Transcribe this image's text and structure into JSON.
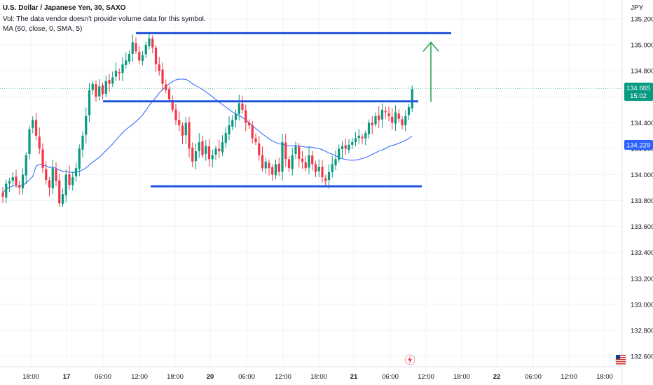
{
  "header": {
    "title": "U.S. Dollar / Japanese Yen, 30, SAXO",
    "vol_note": "Vol: The data vendor doesn't provide volume data for this symbol.",
    "ma_label": "MA (60, close, 0, SMA, 5)"
  },
  "currency": "JPY",
  "colors": {
    "up": "#089981",
    "down": "#f23645",
    "ma": "#2962ff",
    "drawn_lines": "#2255dd",
    "arrow": "#22a045",
    "last_price_bg": "#089981",
    "ma_label_bg": "#2962ff"
  },
  "badges": {
    "last_price": "134.665",
    "countdown": "15:02",
    "ma_value": "134.229"
  },
  "chart_data": {
    "type": "candlestick",
    "title": "U.S. Dollar / Japanese Yen, 30, SAXO",
    "y_axis": {
      "position": "right",
      "unit": "JPY",
      "ylim": [
        132.55,
        135.25
      ],
      "ticks": [
        "135.200",
        "135.000",
        "134.800",
        "134.600",
        "134.400",
        "134.200",
        "134.000",
        "133.800",
        "133.600",
        "133.400",
        "133.200",
        "133.000",
        "132.800",
        "132.600"
      ]
    },
    "x_axis": {
      "ticks": [
        "18:00",
        "17",
        "06:00",
        "12:00",
        "18:00",
        "20",
        "06:00",
        "12:00",
        "18:00",
        "21",
        "06:00",
        "12:00",
        "18:00",
        "22",
        "06:00",
        "12:00",
        "18:00"
      ]
    },
    "closes": [
      133.83,
      133.93,
      133.95,
      133.98,
      133.92,
      133.9,
      134.0,
      134.15,
      134.35,
      134.42,
      134.3,
      134.2,
      134.05,
      133.96,
      133.9,
      134.05,
      133.95,
      133.78,
      133.85,
      134.0,
      133.92,
      133.98,
      134.05,
      134.2,
      134.3,
      134.45,
      134.65,
      134.7,
      134.6,
      134.68,
      134.62,
      134.72,
      134.7,
      134.75,
      134.8,
      134.78,
      134.85,
      134.88,
      134.93,
      135.02,
      134.95,
      134.88,
      134.92,
      135.0,
      135.05,
      134.98,
      134.85,
      134.8,
      134.7,
      134.65,
      134.58,
      134.5,
      134.42,
      134.38,
      134.3,
      134.4,
      134.2,
      134.1,
      134.18,
      134.25,
      134.15,
      134.22,
      134.12,
      134.15,
      134.2,
      134.18,
      134.25,
      134.32,
      134.38,
      134.42,
      134.47,
      134.55,
      134.5,
      134.4,
      134.38,
      134.28,
      134.25,
      134.15,
      134.05,
      134.1,
      134.05,
      134.0,
      134.08,
      134.02,
      134.25,
      134.12,
      134.05,
      134.15,
      134.22,
      134.12,
      134.1,
      134.05,
      134.15,
      134.08,
      134.02,
      134.06,
      133.98,
      133.95,
      134.02,
      134.08,
      134.12,
      134.2,
      134.22,
      134.2,
      134.23,
      134.25,
      134.28,
      134.3,
      134.28,
      134.32,
      134.4,
      134.38,
      134.45,
      134.42,
      134.5,
      134.48,
      134.45,
      134.4,
      134.48,
      134.43,
      134.38,
      134.45,
      134.52,
      134.66
    ],
    "moving_average": {
      "name": "MA (60, close, 0, SMA, 5)",
      "period": 60,
      "last_value": 134.229
    },
    "annotations": {
      "resistance_top": 135.09,
      "breakout_line": 134.565,
      "support_bottom": 133.91,
      "arrow": {
        "from": 134.56,
        "to": 135.02,
        "direction": "up"
      }
    },
    "current_price": 134.665,
    "grid": true
  }
}
